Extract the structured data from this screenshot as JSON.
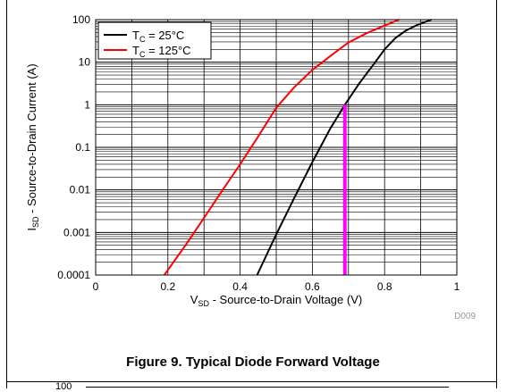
{
  "figure": {
    "caption": "Figure 9. Typical Diode Forward Voltage",
    "code": "D009"
  },
  "next_figure": {
    "y_tick_visible": "100"
  },
  "chart_data": {
    "type": "line",
    "xlabel_main": "V",
    "xlabel_sub": "SD",
    "xlabel_rest": " - Source-to-Drain Voltage (V)",
    "ylabel_main": "I",
    "ylabel_sub": "SD",
    "ylabel_rest": " - Source-to-Drain Current (A)",
    "xlim": [
      0,
      1
    ],
    "ylim": [
      0.0001,
      100
    ],
    "yscale": "log",
    "grid": true,
    "legend_position": "top-left",
    "x_ticks": [
      {
        "value": 0,
        "label": "0"
      },
      {
        "value": 0.2,
        "label": "0.2"
      },
      {
        "value": 0.4,
        "label": "0.4"
      },
      {
        "value": 0.6,
        "label": "0.6"
      },
      {
        "value": 0.8,
        "label": "0.8"
      },
      {
        "value": 1,
        "label": "1"
      }
    ],
    "y_ticks": [
      {
        "value": 100,
        "label": "100"
      },
      {
        "value": 10,
        "label": "10"
      },
      {
        "value": 1,
        "label": "1"
      },
      {
        "value": 0.1,
        "label": "0.1"
      },
      {
        "value": 0.01,
        "label": "0.01"
      },
      {
        "value": 0.001,
        "label": "0.001"
      },
      {
        "value": 0.0001,
        "label": "0.0001"
      }
    ],
    "series": [
      {
        "legend_main": "T",
        "legend_sub": "C",
        "legend_rest": " = 25°C",
        "color": "#000000",
        "x": [
          0.447,
          0.5,
          0.55,
          0.6,
          0.65,
          0.69,
          0.73,
          0.77,
          0.8,
          0.83,
          0.86,
          0.89,
          0.93
        ],
        "y": [
          0.0001,
          0.0009,
          0.0065,
          0.045,
          0.28,
          1.0,
          3.2,
          9,
          20,
          37,
          56,
          75,
          100
        ]
      },
      {
        "legend_main": "T",
        "legend_sub": "C",
        "legend_rest": " = 125°C",
        "color": "#ff0000",
        "x": [
          0.19,
          0.25,
          0.3,
          0.35,
          0.4,
          0.45,
          0.5,
          0.55,
          0.6,
          0.65,
          0.7,
          0.75,
          0.79,
          0.84
        ],
        "y": [
          0.0001,
          0.00052,
          0.0022,
          0.0095,
          0.04,
          0.18,
          0.85,
          2.6,
          6.6,
          14,
          29,
          48,
          67,
          100
        ]
      }
    ],
    "marker_line": {
      "x": 0.69,
      "y_from": 0.0001,
      "y_to": 1,
      "color": "#ff00ff"
    }
  }
}
